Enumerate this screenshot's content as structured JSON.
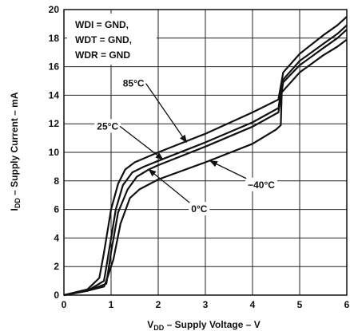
{
  "chart_data": {
    "type": "line",
    "xlabel": {
      "main": "V",
      "sub": "DD",
      "rest": " – Supply Voltage – V"
    },
    "ylabel": {
      "main": "I",
      "sub": "DD",
      "rest": " – Supply Current – mA"
    },
    "xlim": [
      0,
      6
    ],
    "ylim": [
      0,
      20
    ],
    "x_ticks": [
      0,
      1,
      2,
      3,
      4,
      5,
      6
    ],
    "y_ticks": [
      0,
      2,
      4,
      6,
      8,
      10,
      12,
      14,
      16,
      18,
      20
    ],
    "grid": true,
    "conditions": [
      "WDI = GND,",
      "WDT = GND,",
      "WDR = GND"
    ],
    "series": [
      {
        "name": "85°C",
        "points": [
          [
            0,
            0
          ],
          [
            0.5,
            0.4
          ],
          [
            0.75,
            1.2
          ],
          [
            0.85,
            3
          ],
          [
            1.0,
            6
          ],
          [
            1.15,
            7.8
          ],
          [
            1.3,
            8.8
          ],
          [
            1.5,
            9.3
          ],
          [
            2.0,
            10.0
          ],
          [
            3.0,
            11.3
          ],
          [
            4.0,
            12.8
          ],
          [
            4.55,
            13.7
          ],
          [
            4.65,
            15.6
          ],
          [
            5.0,
            16.9
          ],
          [
            5.5,
            18.2
          ],
          [
            5.8,
            18.9
          ],
          [
            6.0,
            19.5
          ]
        ]
      },
      {
        "name": "25°C",
        "points": [
          [
            0,
            0
          ],
          [
            0.5,
            0.3
          ],
          [
            0.85,
            1.0
          ],
          [
            0.95,
            3
          ],
          [
            1.1,
            6
          ],
          [
            1.25,
            7.7
          ],
          [
            1.45,
            8.6
          ],
          [
            1.7,
            9.0
          ],
          [
            2.0,
            9.4
          ],
          [
            3.0,
            10.7
          ],
          [
            4.0,
            12.1
          ],
          [
            4.55,
            13.1
          ],
          [
            4.65,
            15.1
          ],
          [
            5.0,
            16.4
          ],
          [
            5.5,
            17.6
          ],
          [
            5.8,
            18.3
          ],
          [
            6.0,
            18.9
          ]
        ]
      },
      {
        "name": "0°C",
        "points": [
          [
            0,
            0
          ],
          [
            0.5,
            0.3
          ],
          [
            0.9,
            0.8
          ],
          [
            1.0,
            3
          ],
          [
            1.15,
            5.8
          ],
          [
            1.35,
            7.4
          ],
          [
            1.55,
            8.3
          ],
          [
            1.8,
            8.8
          ],
          [
            2.0,
            9.1
          ],
          [
            3.0,
            10.4
          ],
          [
            4.0,
            11.8
          ],
          [
            4.55,
            12.8
          ],
          [
            4.65,
            14.9
          ],
          [
            5.0,
            16.1
          ],
          [
            5.5,
            17.3
          ],
          [
            5.8,
            18.0
          ],
          [
            6.0,
            18.6
          ]
        ]
      },
      {
        "name": "−40°C",
        "points": [
          [
            0,
            0
          ],
          [
            0.5,
            0.3
          ],
          [
            0.85,
            0.6
          ],
          [
            0.9,
            1.0
          ],
          [
            1.05,
            2.5
          ],
          [
            1.2,
            5.0
          ],
          [
            1.4,
            6.8
          ],
          [
            1.6,
            7.4
          ],
          [
            2.0,
            8.1
          ],
          [
            3.0,
            9.3
          ],
          [
            4.0,
            10.6
          ],
          [
            4.5,
            11.6
          ],
          [
            4.6,
            11.9
          ],
          [
            4.62,
            14.2
          ],
          [
            5.0,
            15.6
          ],
          [
            5.5,
            16.8
          ],
          [
            5.8,
            17.4
          ],
          [
            6.0,
            17.9
          ]
        ]
      }
    ],
    "annotations": [
      {
        "text": "85°C",
        "series": "85°C",
        "label_at": [
          1.25,
          14.6
        ],
        "arrow_to": [
          2.6,
          10.7
        ]
      },
      {
        "text": "25°C",
        "series": "25°C",
        "label_at": [
          0.7,
          11.6
        ],
        "arrow_to": [
          2.1,
          9.5
        ]
      },
      {
        "text": "0°C",
        "series": "0°C",
        "label_at": [
          2.7,
          5.8
        ],
        "arrow_to": [
          1.8,
          8.8
        ]
      },
      {
        "text": "−40°C",
        "series": "−40°C",
        "label_at": [
          3.9,
          7.5
        ],
        "arrow_to": [
          3.1,
          9.4
        ]
      }
    ]
  }
}
